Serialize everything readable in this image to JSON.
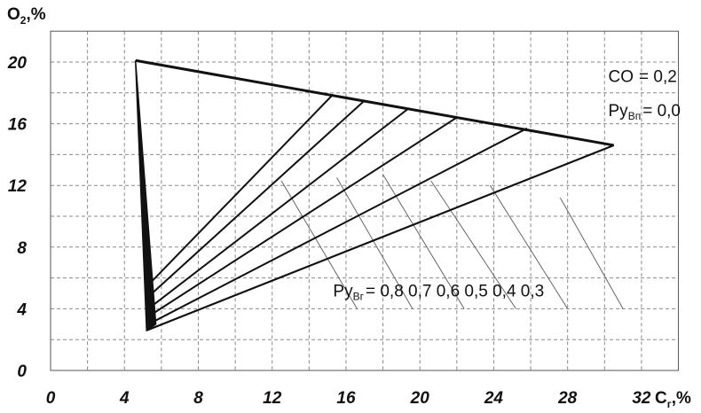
{
  "chart_data": {
    "type": "line",
    "title": "",
    "xlabel": {
      "main": "C",
      "sub": "г",
      "unit": ",%"
    },
    "ylabel": {
      "main": "O",
      "sub": "2",
      "unit": ",%"
    },
    "xlim": [
      0,
      34
    ],
    "ylim": [
      0,
      22
    ],
    "xticks": [
      0,
      4,
      8,
      12,
      16,
      20,
      24,
      28,
      32
    ],
    "yticks": [
      0,
      4,
      8,
      12,
      16,
      20
    ],
    "grid": true,
    "outline": {
      "apex": [
        4.6,
        20.1
      ],
      "right": [
        30.5,
        14.6
      ],
      "bottom": [
        5.2,
        2.6
      ],
      "apex_bottom_points": [
        [
          4.6,
          20.1
        ],
        [
          5.2,
          2.6
        ],
        [
          5.7,
          3.0
        ],
        [
          4.6,
          20.1
        ]
      ]
    },
    "series": [
      {
        "label": "0,8",
        "points": [
          [
            5.5,
            5.8
          ],
          [
            15.3,
            17.9
          ]
        ]
      },
      {
        "label": "0,7",
        "points": [
          [
            5.4,
            4.9
          ],
          [
            17.0,
            17.5
          ]
        ]
      },
      {
        "label": "0,6",
        "points": [
          [
            5.4,
            4.1
          ],
          [
            19.4,
            17.0
          ]
        ]
      },
      {
        "label": "0,5",
        "points": [
          [
            5.3,
            3.5
          ],
          [
            22.0,
            16.4
          ]
        ]
      },
      {
        "label": "0,4",
        "points": [
          [
            5.3,
            3.0
          ],
          [
            25.8,
            15.7
          ]
        ]
      },
      {
        "label": "0,3",
        "points": [
          [
            5.2,
            2.6
          ],
          [
            30.5,
            14.6
          ]
        ]
      }
    ],
    "leader_lines": [
      {
        "label": "0,8",
        "from": [
          12.5,
          12.3
        ],
        "to": [
          16.6,
          4.0
        ]
      },
      {
        "label": "0,7",
        "from": [
          15.5,
          12.5
        ],
        "to": [
          19.6,
          4.0
        ]
      },
      {
        "label": "0,6",
        "from": [
          18.0,
          12.7
        ],
        "to": [
          22.4,
          4.0
        ]
      },
      {
        "label": "0,5",
        "from": [
          20.6,
          12.3
        ],
        "to": [
          25.2,
          4.0
        ]
      },
      {
        "label": "0,4",
        "from": [
          23.8,
          12.0
        ],
        "to": [
          28.0,
          4.0
        ]
      },
      {
        "label": "0,3",
        "from": [
          27.6,
          11.2
        ],
        "to": [
          31.0,
          4.0
        ]
      }
    ],
    "annotations": {
      "co": {
        "prefix": "CO",
        "eq": "= 0,2",
        "pos": [
          30.2,
          18.7
        ]
      },
      "pyvn": {
        "prefix": "Ру",
        "sub": "Вп",
        "eq": "= 0,0",
        "pos": [
          30.2,
          16.5
        ]
      },
      "pyvg": {
        "prefix": "Ру",
        "sub": "Вг",
        "eq": "= 0,8  0,7  0,6  0,5  0,4  0,3",
        "pos": [
          15.3,
          4.8
        ]
      }
    }
  }
}
